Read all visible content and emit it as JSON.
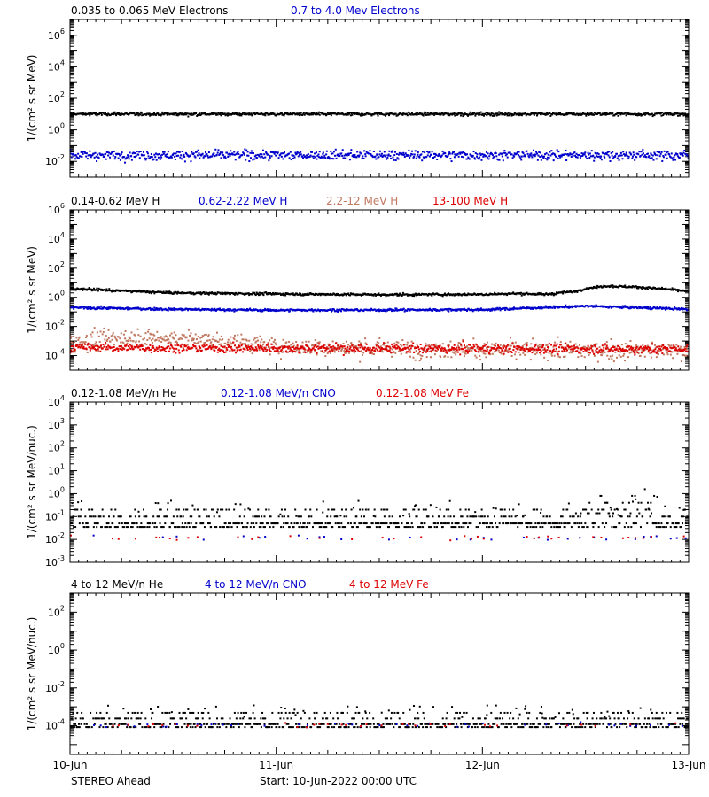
{
  "figure": {
    "spacecraft": "STEREO Ahead",
    "start_label": "Start: 10-Jun-2022 00:00 UTC"
  },
  "chart_data": [
    {
      "type": "scatter",
      "ylabel": "1/(cm² s sr MeV)",
      "yscale": "log",
      "ylim": [
        0.001,
        10000000
      ],
      "ytick_exponents": [
        -2,
        0,
        2,
        4,
        6
      ],
      "xlim": [
        0,
        3
      ],
      "x_unit": "days since 10-Jun-2022 00:00 UTC",
      "x_ticks": [
        0,
        1,
        2,
        3
      ],
      "x_tick_labels": [
        "10-Jun",
        "11-Jun",
        "12-Jun",
        "13-Jun"
      ],
      "series": [
        {
          "name": "0.035 to 0.065 MeV Electrons",
          "color": "#000000",
          "level": 10,
          "noise_decades": 0.05
        },
        {
          "name": "0.7 to 4.0 Mev Electrons",
          "color": "#0000cc",
          "level": 0.025,
          "noise_decades": 0.15
        }
      ]
    },
    {
      "type": "scatter",
      "ylabel": "1/(cm² s sr MeV)",
      "yscale": "log",
      "ylim": [
        1e-05,
        1000000
      ],
      "ytick_exponents": [
        -4,
        -2,
        0,
        2,
        4,
        6
      ],
      "xlim": [
        0,
        3
      ],
      "x_ticks": [
        0,
        1,
        2,
        3
      ],
      "series": [
        {
          "name": "0.14-0.62 MeV H",
          "color": "#000000",
          "profile": [
            [
              0,
              4
            ],
            [
              0.2,
              3
            ],
            [
              0.5,
              2
            ],
            [
              1.0,
              1.7
            ],
            [
              1.5,
              1.5
            ],
            [
              2.0,
              1.6
            ],
            [
              2.15,
              1.8
            ],
            [
              2.3,
              1.6
            ],
            [
              2.45,
              2.5
            ],
            [
              2.5,
              4
            ],
            [
              2.6,
              6
            ],
            [
              2.75,
              5
            ],
            [
              2.9,
              3.5
            ],
            [
              3.0,
              2.5
            ]
          ],
          "noise_decades": 0.04
        },
        {
          "name": "0.62-2.22 MeV H",
          "color": "#0000cc",
          "profile": [
            [
              0,
              0.2
            ],
            [
              0.5,
              0.15
            ],
            [
              1.0,
              0.13
            ],
            [
              2.0,
              0.14
            ],
            [
              2.5,
              0.25
            ],
            [
              2.75,
              0.2
            ],
            [
              3.0,
              0.15
            ]
          ],
          "noise_decades": 0.04
        },
        {
          "name": "2.2-12 MeV H",
          "color": "#c07860",
          "profile": [
            [
              0,
              0.0008
            ],
            [
              0.3,
              0.0018
            ],
            [
              0.7,
              0.0012
            ],
            [
              1.0,
              0.0004
            ],
            [
              2.0,
              0.00025
            ],
            [
              3.0,
              0.0002
            ]
          ],
          "noise_decades": 0.3
        },
        {
          "name": "13-100 MeV H",
          "color": "#dd0000",
          "profile": [
            [
              0,
              0.00035
            ],
            [
              1.5,
              0.0003
            ],
            [
              3.0,
              0.00028
            ]
          ],
          "noise_decades": 0.15
        }
      ]
    },
    {
      "type": "scatter",
      "ylabel": "1/(cm² s sr MeV/nuc.)",
      "yscale": "log",
      "ylim": [
        0.001,
        10000
      ],
      "ytick_exponents": [
        -3,
        -2,
        -1,
        0,
        1,
        2,
        3,
        4
      ],
      "xlim": [
        0,
        3
      ],
      "x_ticks": [
        0,
        1,
        2,
        3
      ],
      "series": [
        {
          "name": "0.12-1.08 MeV/n He",
          "color": "#000000",
          "level": 0.05,
          "noise_decades": 0.25,
          "discrete": true
        },
        {
          "name": "0.12-1.08 MeV/n CNO",
          "color": "#0000cc",
          "level": 0.012,
          "sparse": true
        },
        {
          "name": "0.12-1.08 MeV Fe",
          "color": "#dd0000",
          "level": 0.012,
          "sparse": true
        }
      ]
    },
    {
      "type": "scatter",
      "ylabel": "1/(cm² s sr MeV/nuc.)",
      "yscale": "log",
      "ylim": [
        3e-06,
        1000
      ],
      "ytick_exponents": [
        -4,
        -2,
        0,
        2
      ],
      "xlim": [
        0,
        3
      ],
      "x_ticks": [
        0,
        1,
        2,
        3
      ],
      "series": [
        {
          "name": "4 to 12 MeV/n He",
          "color": "#000000",
          "level": 0.00012,
          "noise_decades": 0.2,
          "discrete": true
        },
        {
          "name": "4 to 12 MeV/n CNO",
          "color": "#0000cc",
          "level": 0.00011,
          "sparse": true
        },
        {
          "name": "4 to 12 MeV Fe",
          "color": "#dd0000",
          "level": 0.00011,
          "sparse": true
        }
      ]
    }
  ]
}
